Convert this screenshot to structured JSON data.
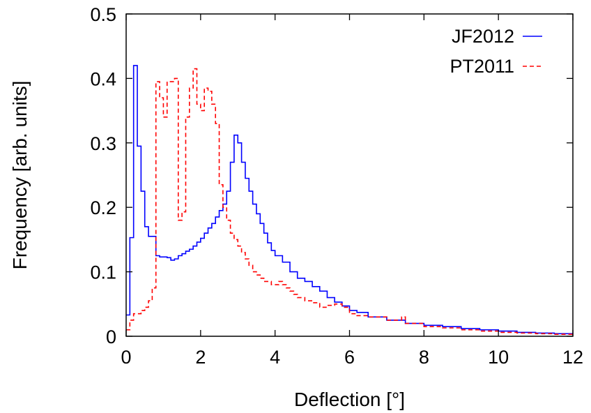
{
  "chart_data": {
    "type": "line",
    "style": "step",
    "xlabel": "Deflection [°]",
    "ylabel": "Frequency [arb. units]",
    "xlim": [
      0,
      12
    ],
    "ylim": [
      0,
      0.5
    ],
    "xticks": [
      0,
      2,
      4,
      6,
      8,
      10,
      12
    ],
    "xtick_labels": [
      "0",
      "2",
      "4",
      "6",
      "8",
      "10",
      "12"
    ],
    "yticks": [
      0,
      0.1,
      0.2,
      0.3,
      0.4,
      0.5
    ],
    "ytick_labels": [
      "0",
      "0.1",
      "0.2",
      "0.3",
      "0.4",
      "0.5"
    ],
    "grid": false,
    "legend_position": "top-right",
    "bin_width": 0.1,
    "series": [
      {
        "name": "JF2012",
        "color": "#0000ff",
        "dash": "solid",
        "x": [
          0.0,
          0.1,
          0.2,
          0.3,
          0.4,
          0.5,
          0.6,
          0.7,
          0.8,
          0.9,
          1.0,
          1.1,
          1.2,
          1.3,
          1.4,
          1.5,
          1.6,
          1.7,
          1.8,
          1.9,
          2.0,
          2.1,
          2.2,
          2.3,
          2.4,
          2.5,
          2.6,
          2.7,
          2.8,
          2.9,
          3.0,
          3.1,
          3.2,
          3.3,
          3.4,
          3.5,
          3.6,
          3.7,
          3.8,
          3.9,
          4.0,
          4.2,
          4.4,
          4.6,
          4.8,
          5.0,
          5.2,
          5.4,
          5.6,
          5.8,
          6.0,
          6.2,
          6.5,
          7.0,
          7.5,
          8.0,
          8.5,
          9.0,
          9.5,
          10.0,
          10.5,
          11.0,
          11.5
        ],
        "values": [
          0.033,
          0.153,
          0.42,
          0.295,
          0.225,
          0.17,
          0.155,
          0.155,
          0.125,
          0.123,
          0.123,
          0.122,
          0.118,
          0.12,
          0.125,
          0.128,
          0.132,
          0.135,
          0.14,
          0.146,
          0.152,
          0.16,
          0.168,
          0.175,
          0.185,
          0.195,
          0.205,
          0.225,
          0.27,
          0.312,
          0.3,
          0.27,
          0.245,
          0.225,
          0.205,
          0.19,
          0.175,
          0.16,
          0.145,
          0.133,
          0.125,
          0.115,
          0.1,
          0.09,
          0.085,
          0.077,
          0.07,
          0.06,
          0.053,
          0.047,
          0.04,
          0.037,
          0.03,
          0.025,
          0.02,
          0.017,
          0.015,
          0.012,
          0.01,
          0.008,
          0.006,
          0.005,
          0.004
        ]
      },
      {
        "name": "PT2011",
        "color": "#ff0000",
        "dash": "dashed",
        "x": [
          0.0,
          0.1,
          0.2,
          0.3,
          0.4,
          0.5,
          0.6,
          0.7,
          0.8,
          0.9,
          1.0,
          1.1,
          1.2,
          1.3,
          1.4,
          1.5,
          1.6,
          1.7,
          1.8,
          1.9,
          2.0,
          2.1,
          2.2,
          2.3,
          2.4,
          2.5,
          2.6,
          2.7,
          2.8,
          2.9,
          3.0,
          3.1,
          3.2,
          3.3,
          3.4,
          3.5,
          3.6,
          3.7,
          3.8,
          3.9,
          4.0,
          4.1,
          4.2,
          4.3,
          4.4,
          4.5,
          4.6,
          4.8,
          5.0,
          5.2,
          5.4,
          5.6,
          5.8,
          6.0,
          6.2,
          6.5,
          7.0,
          7.4,
          7.5,
          8.0,
          8.5,
          9.0,
          9.5,
          10.0,
          10.5,
          11.0,
          11.5
        ],
        "values": [
          0.01,
          0.025,
          0.035,
          0.035,
          0.04,
          0.045,
          0.055,
          0.075,
          0.395,
          0.37,
          0.34,
          0.395,
          0.395,
          0.4,
          0.18,
          0.193,
          0.34,
          0.385,
          0.415,
          0.36,
          0.35,
          0.385,
          0.38,
          0.36,
          0.33,
          0.235,
          0.2,
          0.18,
          0.16,
          0.15,
          0.14,
          0.13,
          0.12,
          0.11,
          0.1,
          0.095,
          0.09,
          0.085,
          0.085,
          0.08,
          0.08,
          0.085,
          0.08,
          0.075,
          0.07,
          0.065,
          0.06,
          0.055,
          0.052,
          0.045,
          0.048,
          0.05,
          0.045,
          0.035,
          0.032,
          0.03,
          0.025,
          0.03,
          0.02,
          0.015,
          0.013,
          0.01,
          0.008,
          0.006,
          0.005,
          0.004,
          0.003
        ]
      }
    ]
  }
}
